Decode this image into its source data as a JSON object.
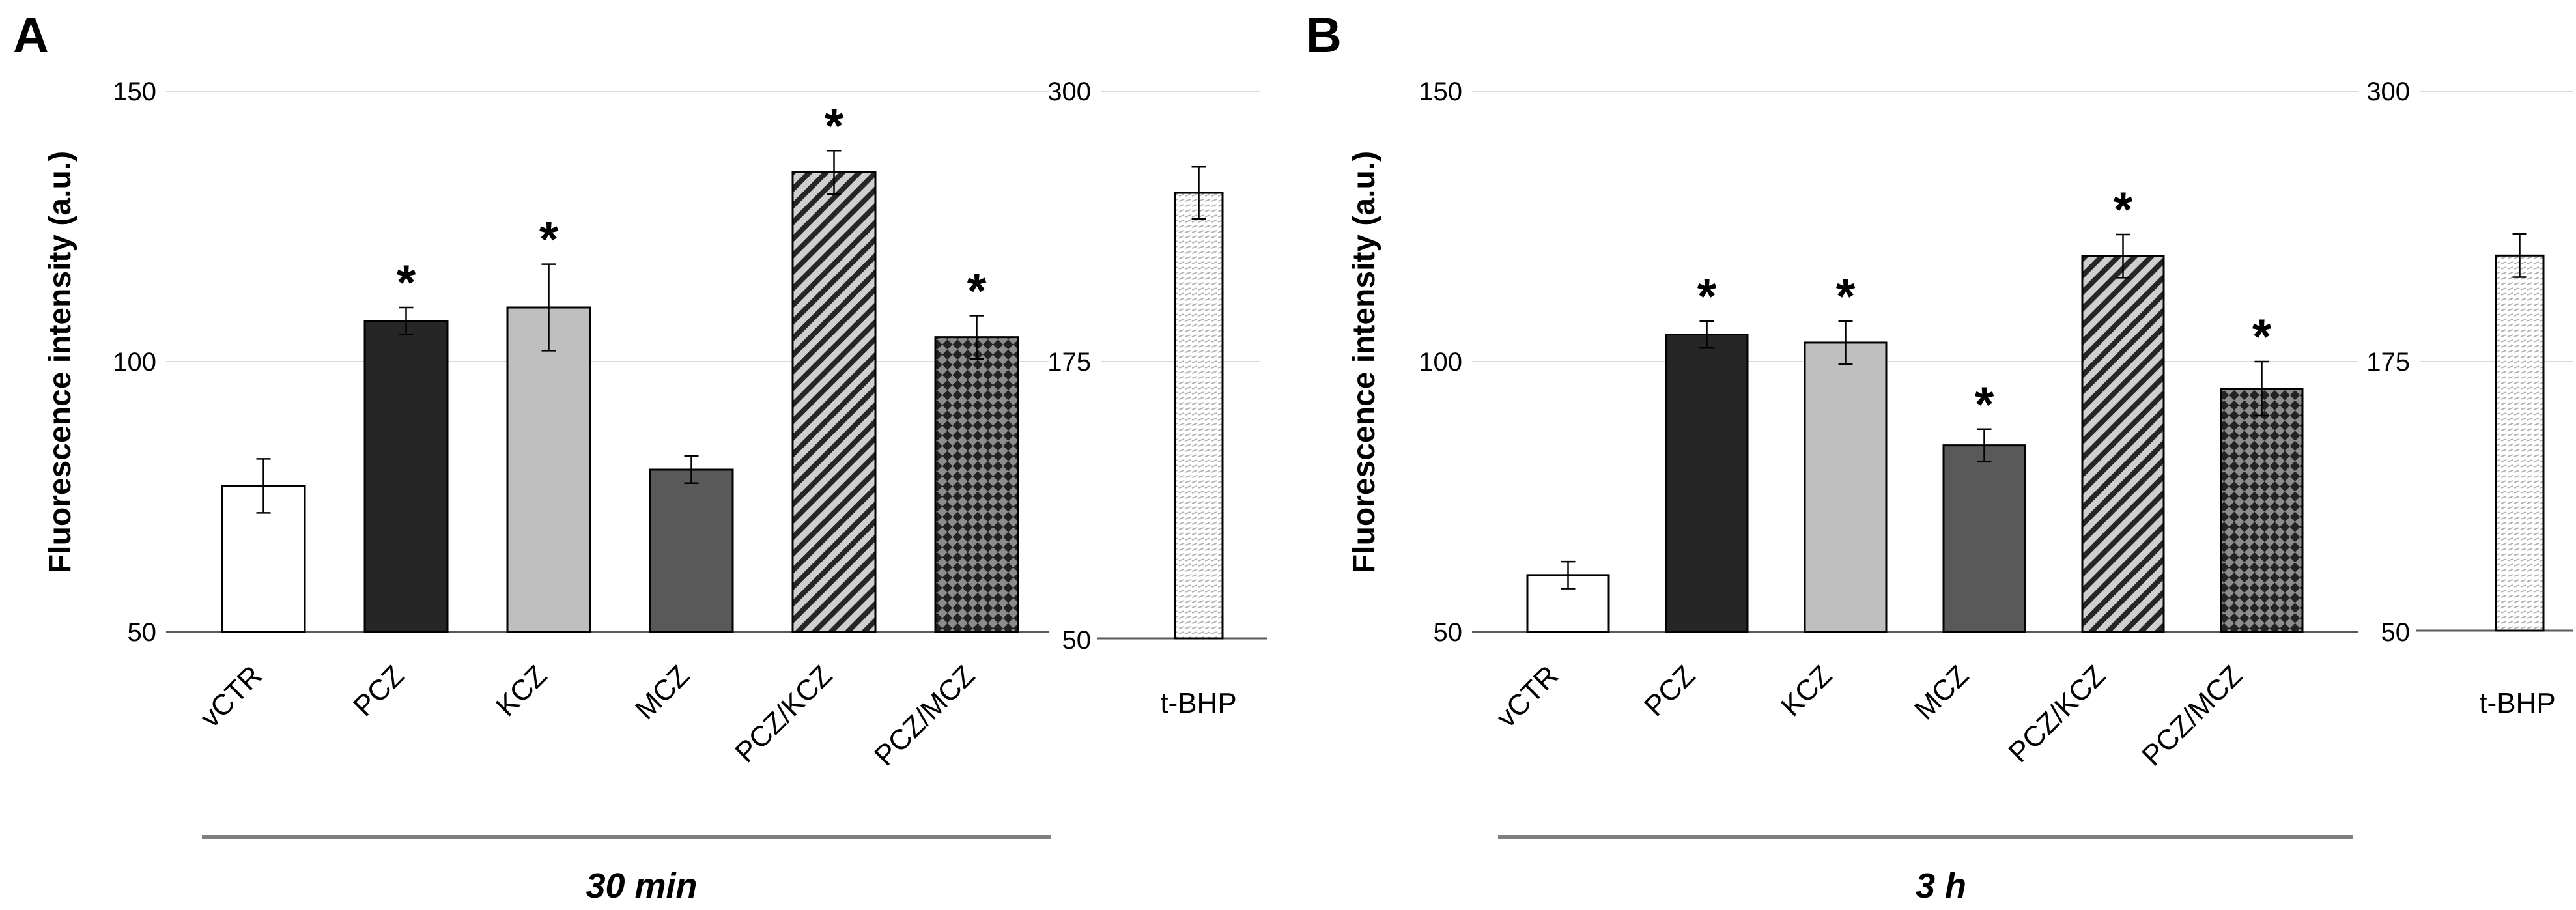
{
  "chart_data": [
    {
      "panel_label": "A",
      "type": "bar",
      "ylabel": "Fluorescence intensity (a.u.)",
      "timepoint": "30 min",
      "main_ylim": [
        50,
        150
      ],
      "main_yticks": [
        50,
        100,
        150
      ],
      "side_ylim": [
        50,
        300
      ],
      "side_yticks": [
        50,
        175,
        300
      ],
      "categories": [
        "vCTR",
        "PCZ",
        "KCZ",
        "MCZ",
        "PCZ/KCZ",
        "PCZ/MCZ"
      ],
      "values": [
        77,
        107.5,
        110,
        80,
        135,
        104.5
      ],
      "errors": [
        5,
        2.5,
        8,
        2.5,
        4,
        4
      ],
      "significant": [
        false,
        true,
        true,
        false,
        true,
        true
      ],
      "fills": [
        "white",
        "#262626",
        "#bfbfbf",
        "#595959",
        "hatch",
        "checker"
      ],
      "side_category": "t-BHP",
      "side_value": 253,
      "side_error": 12,
      "significance_marker": "*"
    },
    {
      "panel_label": "B",
      "type": "bar",
      "ylabel": "Fluorescence intensity (a.u.)",
      "timepoint": "3 h",
      "main_ylim": [
        50,
        150
      ],
      "main_yticks": [
        50,
        100,
        150
      ],
      "side_ylim": [
        50,
        300
      ],
      "side_yticks": [
        50,
        175,
        300
      ],
      "categories": [
        "vCTR",
        "PCZ",
        "KCZ",
        "MCZ",
        "PCZ/KCZ",
        "PCZ/MCZ"
      ],
      "values": [
        60.5,
        105,
        103.5,
        84.5,
        119.5,
        95
      ],
      "errors": [
        2.5,
        2.5,
        4,
        3,
        4,
        5
      ],
      "significant": [
        false,
        true,
        true,
        true,
        true,
        true
      ],
      "fills": [
        "white",
        "#262626",
        "#bfbfbf",
        "#595959",
        "hatch",
        "checker"
      ],
      "side_category": "t-BHP",
      "side_value": 224,
      "side_error": 10,
      "significance_marker": "*"
    }
  ]
}
